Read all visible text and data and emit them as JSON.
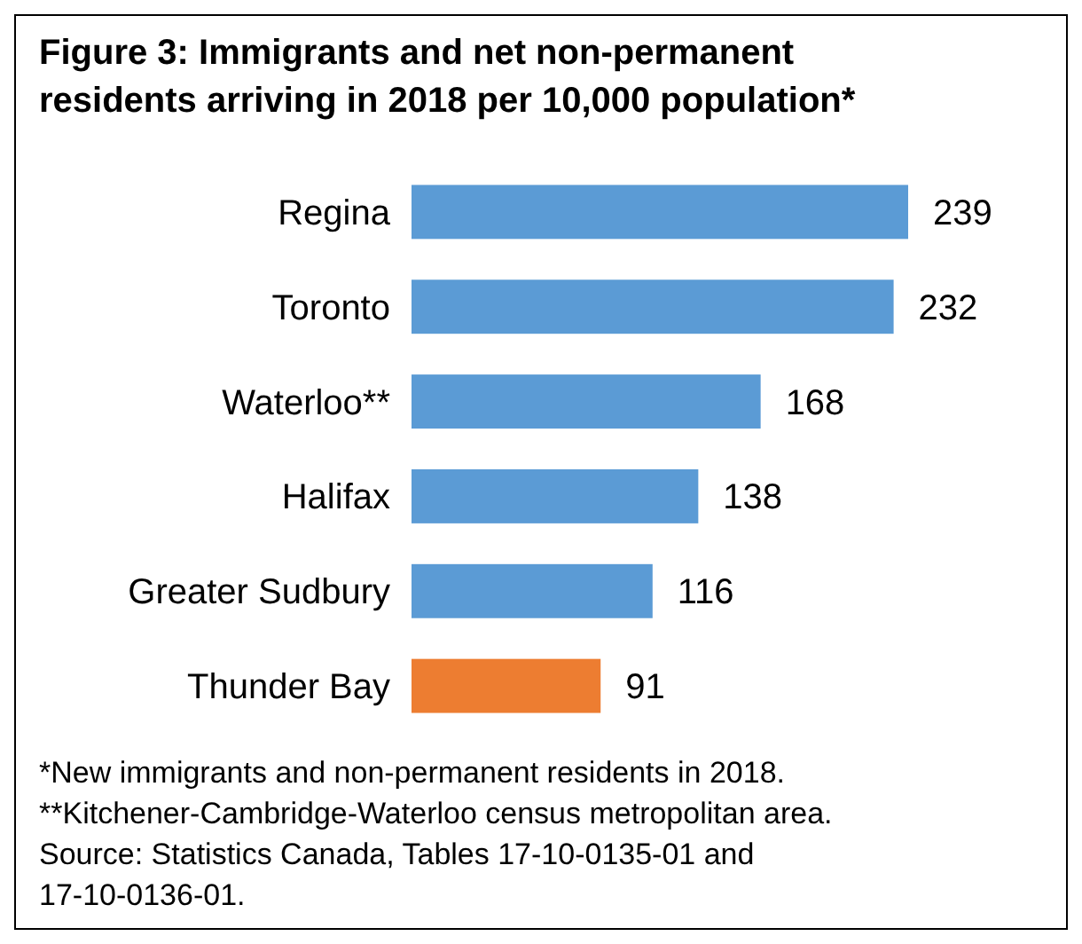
{
  "chart_data": {
    "type": "bar",
    "orientation": "horizontal",
    "title": "Figure 3: Immigrants and net non-permanent residents arriving in 2018 per 10,000 population*",
    "categories": [
      "Regina",
      "Toronto",
      "Waterloo**",
      "Halifax",
      "Greater Sudbury",
      "Thunder Bay"
    ],
    "values": [
      239,
      232,
      168,
      138,
      116,
      91
    ],
    "colors": [
      "#5b9bd5",
      "#5b9bd5",
      "#5b9bd5",
      "#5b9bd5",
      "#5b9bd5",
      "#ed7d31"
    ],
    "data_labels": true,
    "annotations": [
      "*New immigrants and non-permanent residents in 2018.",
      "**Kitchener-Cambridge-Waterloo census metropolitan area.",
      "Source: Statistics Canada, Tables 17-10-0135-01 and 17-10-0136-01."
    ]
  }
}
